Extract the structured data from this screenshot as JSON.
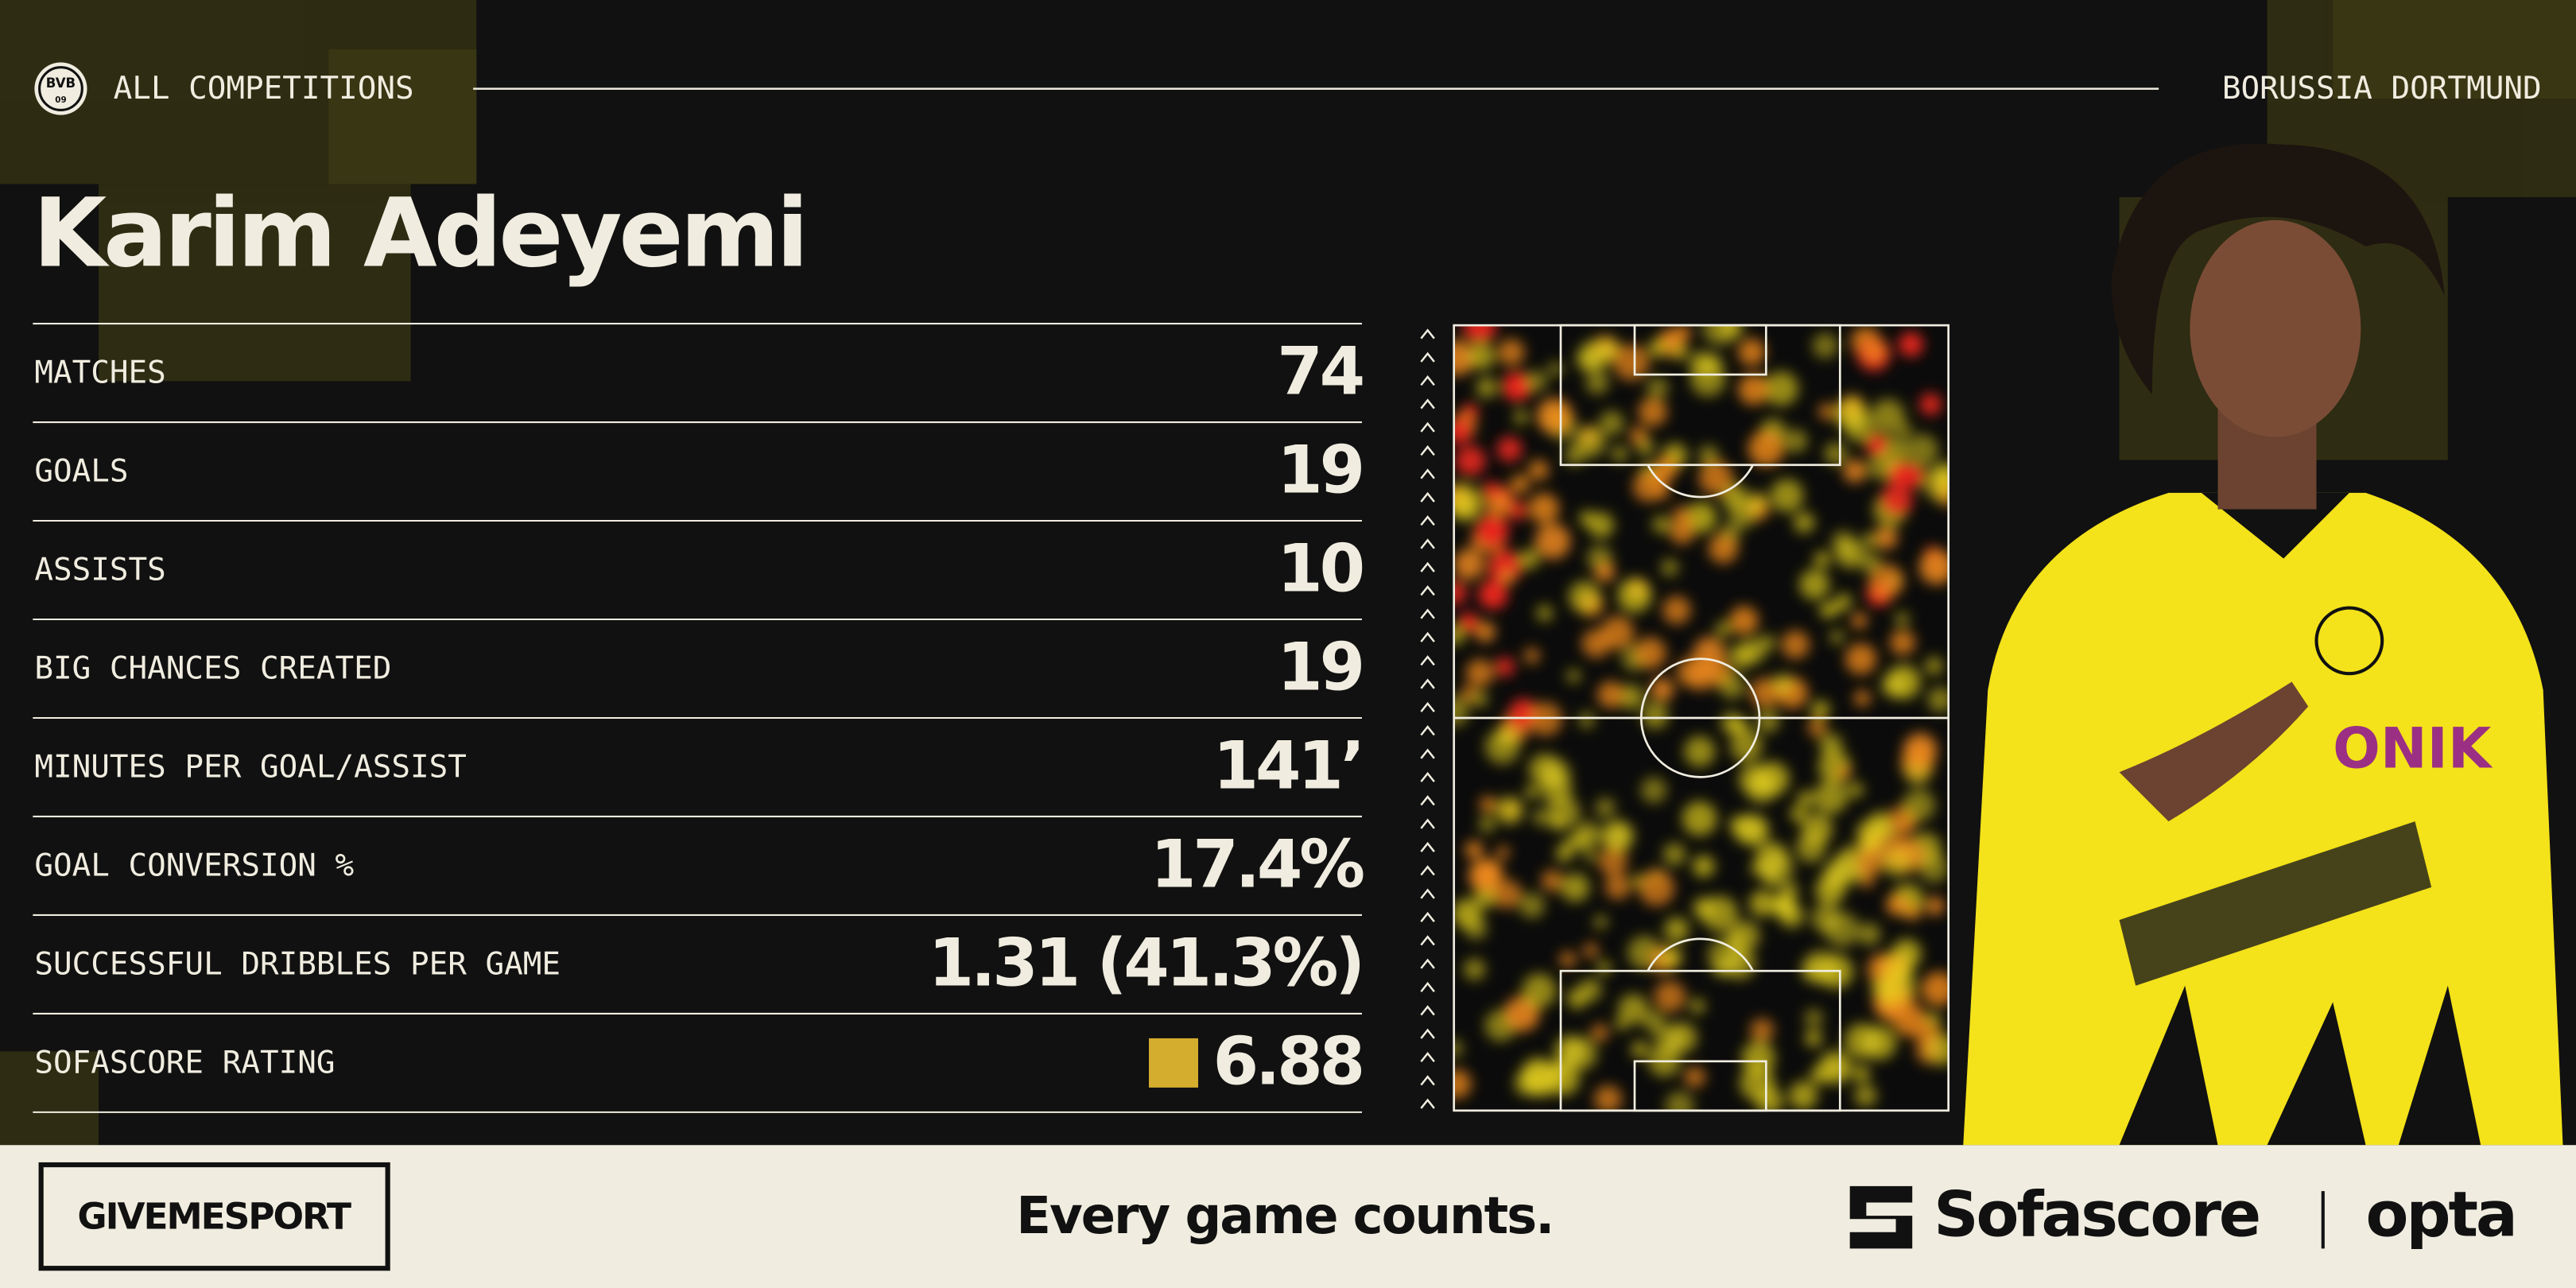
{
  "header": {
    "crest": "BVB",
    "crest_year": "09",
    "competition": "ALL COMPETITIONS",
    "team": "BORUSSIA DORTMUND"
  },
  "player": "Karim Adeyemi",
  "stats": [
    {
      "label": "MATCHES",
      "value": "74"
    },
    {
      "label": "GOALS",
      "value": "19"
    },
    {
      "label": "ASSISTS",
      "value": "10"
    },
    {
      "label": "BIG CHANCES CREATED",
      "value": "19"
    },
    {
      "label": "MINUTES PER GOAL/ASSIST",
      "value": "141’"
    },
    {
      "label": "GOAL CONVERSION %",
      "value": "17.4%"
    },
    {
      "label": "SUCCESSFUL DRIBBLES PER GAME",
      "value": "1.31 (41.3%)"
    },
    {
      "label": "SOFASCORE RATING",
      "value": "6.88"
    }
  ],
  "footer": {
    "brand": "GIVEMESPORT",
    "tagline": "Every game counts.",
    "partner": "Sofascore",
    "provider": "opta"
  }
}
